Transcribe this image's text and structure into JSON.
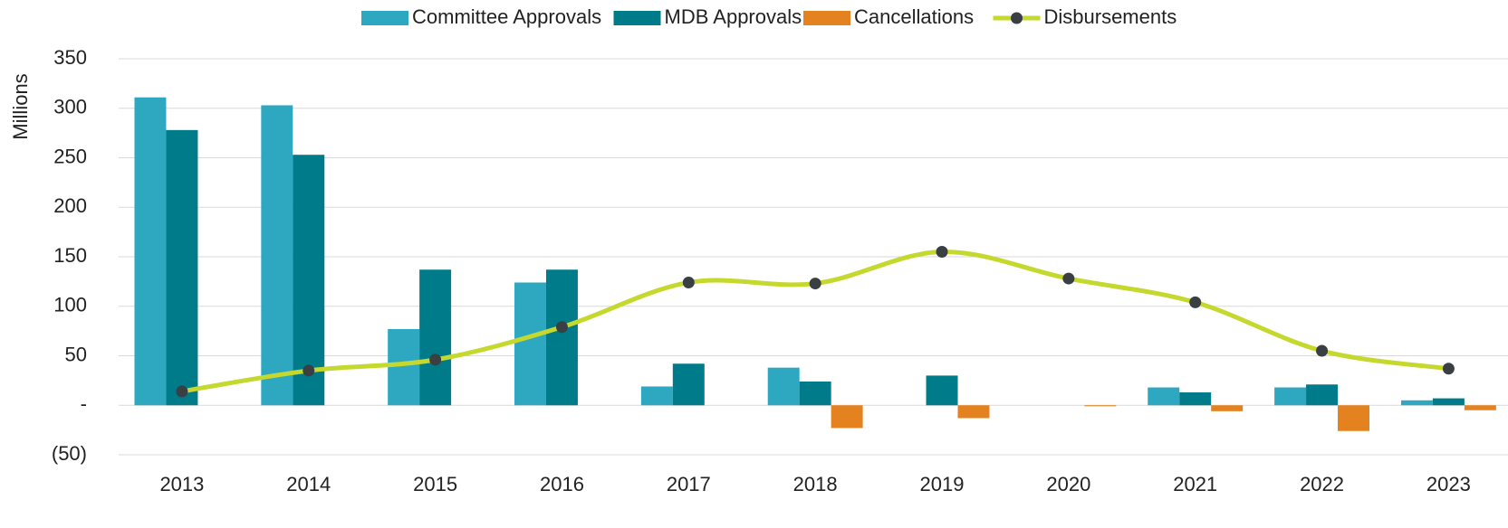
{
  "chart_data": {
    "type": "bar-line",
    "y_axis_label": "Millions",
    "categories": [
      "2013",
      "2014",
      "2015",
      "2016",
      "2017",
      "2018",
      "2019",
      "2020",
      "2021",
      "2022",
      "2023"
    ],
    "series": [
      {
        "name": "Committee Approvals",
        "type": "bar",
        "color": "#2ea8c1",
        "values": [
          311,
          303,
          77,
          124,
          19,
          38,
          0,
          0,
          18,
          18,
          5
        ]
      },
      {
        "name": "MDB Approvals",
        "type": "bar",
        "color": "#007b8a",
        "values": [
          278,
          253,
          137,
          137,
          42,
          24,
          30,
          0,
          13,
          21,
          7
        ]
      },
      {
        "name": "Cancellations",
        "type": "bar",
        "color": "#e3821e",
        "values": [
          0,
          0,
          0,
          0,
          0,
          -23,
          -13,
          -1,
          -6,
          -26,
          -5
        ]
      },
      {
        "name": "Disbursements",
        "type": "line",
        "color": "#c5d82e",
        "marker_color": "#3a3f44",
        "values": [
          14,
          35,
          46,
          79,
          124,
          123,
          155,
          128,
          104,
          55,
          37
        ]
      }
    ],
    "ylim": [
      -50,
      350
    ],
    "yticks": [
      {
        "value": -50,
        "label": "(50)"
      },
      {
        "value": 0,
        "label": "-"
      },
      50,
      100,
      150,
      200,
      250,
      300,
      350
    ],
    "grid": true,
    "legend": "top"
  }
}
